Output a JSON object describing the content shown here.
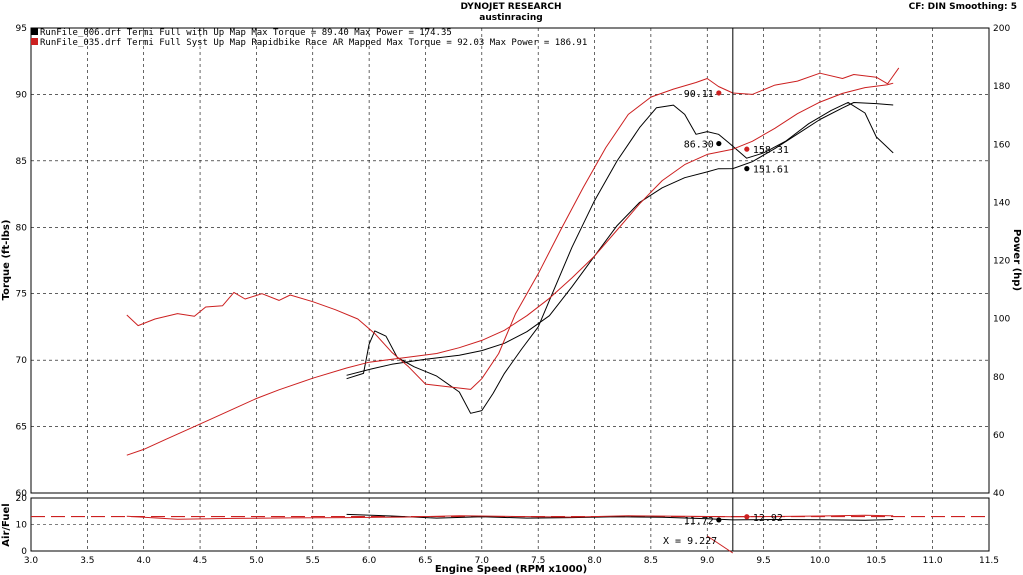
{
  "header": {
    "title": "DYNOJET RESEARCH",
    "subtitle": "austinracing",
    "settings": "CF: DIN  Smoothing: 5"
  },
  "legend": [
    {
      "color": "#000000",
      "label": "RunFile_006.drf Termi Full with Up Map Max Torque = 89.40       Max Power = 174.35"
    },
    {
      "color": "#cc2020",
      "label": "RunFile_035.drf Termi Full Syst Up Map Rapidbike Race AR Mapped Max Torque = 92.03     Max Power = 186.91"
    }
  ],
  "cursor": {
    "x_label": "X = 9.227"
  },
  "chart_data": {
    "type": "line",
    "xlabel": "Engine Speed (RPM x1000)",
    "xlim": [
      3.0,
      11.5
    ],
    "xticks": [
      "3.0",
      "3.5",
      "4.0",
      "4.5",
      "5.0",
      "5.5",
      "6.0",
      "6.5",
      "7.0",
      "7.5",
      "8.0",
      "8.5",
      "9.0",
      "9.5",
      "10.0",
      "10.5",
      "11.0",
      "11.5"
    ],
    "cursor_x": 9.227,
    "main": {
      "ylabel_left": "Torque (ft-lbs)",
      "ylabel_right": "Power (hp)",
      "ylim_left": [
        60,
        95
      ],
      "ylim_right": [
        40,
        200
      ],
      "yticks_left": [
        "60",
        "65",
        "70",
        "75",
        "80",
        "85",
        "90",
        "95"
      ],
      "yticks_right": [
        "40",
        "60",
        "80",
        "100",
        "120",
        "140",
        "160",
        "180",
        "200"
      ],
      "grid": true,
      "series": [
        {
          "color": "#000000",
          "axis": "left",
          "points": [
            [
              5.8,
              68.6
            ],
            [
              5.95,
              69.0
            ],
            [
              6.0,
              71.2
            ],
            [
              6.05,
              72.2
            ],
            [
              6.15,
              71.8
            ],
            [
              6.25,
              70.2
            ],
            [
              6.4,
              69.5
            ],
            [
              6.6,
              68.8
            ],
            [
              6.8,
              67.6
            ],
            [
              6.9,
              66.0
            ],
            [
              7.0,
              66.2
            ],
            [
              7.1,
              67.5
            ],
            [
              7.2,
              69.0
            ],
            [
              7.35,
              70.8
            ],
            [
              7.5,
              72.5
            ],
            [
              7.6,
              74.5
            ],
            [
              7.8,
              78.5
            ],
            [
              8.0,
              82.0
            ],
            [
              8.2,
              85.0
            ],
            [
              8.4,
              87.5
            ],
            [
              8.55,
              89.0
            ],
            [
              8.7,
              89.2
            ],
            [
              8.8,
              88.5
            ],
            [
              8.9,
              87.0
            ],
            [
              9.0,
              87.2
            ],
            [
              9.1,
              87.0
            ],
            [
              9.2,
              86.3
            ],
            [
              9.35,
              85.2
            ],
            [
              9.5,
              85.6
            ],
            [
              9.7,
              86.5
            ],
            [
              9.9,
              87.8
            ],
            [
              10.1,
              88.8
            ],
            [
              10.25,
              89.4
            ],
            [
              10.4,
              88.6
            ],
            [
              10.5,
              86.8
            ],
            [
              10.65,
              85.6
            ]
          ]
        },
        {
          "color": "#000000",
          "axis": "right",
          "points": [
            [
              5.8,
              80.5
            ],
            [
              6.0,
              82.5
            ],
            [
              6.2,
              84.3
            ],
            [
              6.5,
              86.0
            ],
            [
              6.8,
              87.4
            ],
            [
              7.0,
              89.0
            ],
            [
              7.2,
              91.5
            ],
            [
              7.4,
              95.5
            ],
            [
              7.6,
              101.0
            ],
            [
              7.8,
              111.0
            ],
            [
              8.0,
              121.5
            ],
            [
              8.2,
              132.0
            ],
            [
              8.4,
              140.0
            ],
            [
              8.6,
              145.0
            ],
            [
              8.8,
              148.5
            ],
            [
              9.0,
              150.5
            ],
            [
              9.1,
              151.6
            ],
            [
              9.227,
              151.61
            ],
            [
              9.4,
              154.0
            ],
            [
              9.6,
              158.5
            ],
            [
              9.8,
              163.5
            ],
            [
              10.0,
              168.5
            ],
            [
              10.2,
              172.5
            ],
            [
              10.3,
              174.35
            ],
            [
              10.5,
              174.0
            ],
            [
              10.65,
              173.5
            ]
          ]
        },
        {
          "color": "#cc2020",
          "axis": "left",
          "points": [
            [
              3.85,
              73.4
            ],
            [
              3.95,
              72.6
            ],
            [
              4.1,
              73.1
            ],
            [
              4.3,
              73.5
            ],
            [
              4.45,
              73.3
            ],
            [
              4.55,
              74.0
            ],
            [
              4.7,
              74.1
            ],
            [
              4.8,
              75.1
            ],
            [
              4.9,
              74.6
            ],
            [
              5.05,
              75.0
            ],
            [
              5.2,
              74.5
            ],
            [
              5.3,
              74.9
            ],
            [
              5.5,
              74.4
            ],
            [
              5.7,
              73.8
            ],
            [
              5.9,
              73.1
            ],
            [
              6.05,
              72.0
            ],
            [
              6.2,
              70.6
            ],
            [
              6.35,
              69.5
            ],
            [
              6.5,
              68.2
            ],
            [
              6.7,
              68.0
            ],
            [
              6.9,
              67.8
            ],
            [
              7.0,
              68.6
            ],
            [
              7.15,
              70.5
            ],
            [
              7.3,
              73.5
            ],
            [
              7.5,
              76.5
            ],
            [
              7.7,
              79.8
            ],
            [
              7.9,
              83.0
            ],
            [
              8.1,
              86.0
            ],
            [
              8.3,
              88.5
            ],
            [
              8.5,
              89.8
            ],
            [
              8.7,
              90.4
            ],
            [
              8.9,
              90.9
            ],
            [
              9.0,
              91.2
            ],
            [
              9.1,
              90.6
            ],
            [
              9.227,
              90.11
            ],
            [
              9.4,
              90.0
            ],
            [
              9.6,
              90.7
            ],
            [
              9.8,
              91.0
            ],
            [
              10.0,
              91.6
            ],
            [
              10.2,
              91.2
            ],
            [
              10.3,
              91.5
            ],
            [
              10.5,
              91.3
            ],
            [
              10.6,
              90.8
            ],
            [
              10.7,
              92.0
            ]
          ]
        },
        {
          "color": "#cc2020",
          "axis": "right",
          "points": [
            [
              3.85,
              53.0
            ],
            [
              4.0,
              55.0
            ],
            [
              4.2,
              58.5
            ],
            [
              4.4,
              62.0
            ],
            [
              4.6,
              65.5
            ],
            [
              4.8,
              69.0
            ],
            [
              5.0,
              72.5
            ],
            [
              5.2,
              75.5
            ],
            [
              5.5,
              79.5
            ],
            [
              5.8,
              83.0
            ],
            [
              6.0,
              85.0
            ],
            [
              6.3,
              86.5
            ],
            [
              6.6,
              88.0
            ],
            [
              6.8,
              90.0
            ],
            [
              7.0,
              92.5
            ],
            [
              7.2,
              96.0
            ],
            [
              7.4,
              101.0
            ],
            [
              7.6,
              107.0
            ],
            [
              7.8,
              114.0
            ],
            [
              8.0,
              121.5
            ],
            [
              8.2,
              130.5
            ],
            [
              8.4,
              139.5
            ],
            [
              8.6,
              147.5
            ],
            [
              8.8,
              153.0
            ],
            [
              9.0,
              156.5
            ],
            [
              9.227,
              158.31
            ],
            [
              9.4,
              161.0
            ],
            [
              9.6,
              165.5
            ],
            [
              9.8,
              170.5
            ],
            [
              10.0,
              174.5
            ],
            [
              10.2,
              177.5
            ],
            [
              10.4,
              179.5
            ],
            [
              10.6,
              180.5
            ],
            [
              10.65,
              181.0
            ]
          ]
        }
      ],
      "markers": [
        {
          "label": "90.11",
          "color": "#cc2020",
          "x": 9.227,
          "y": 90.11,
          "axis": "left",
          "side": "left"
        },
        {
          "label": "86.30",
          "color": "#000000",
          "x": 9.227,
          "y": 86.3,
          "axis": "left",
          "side": "left"
        },
        {
          "label": "158.31",
          "color": "#cc2020",
          "x": 9.227,
          "y": 158.31,
          "axis": "right",
          "side": "right"
        },
        {
          "label": "151.61",
          "color": "#000000",
          "x": 9.227,
          "y": 151.61,
          "axis": "right",
          "side": "right"
        }
      ]
    },
    "af": {
      "ylabel": "Air/Fuel",
      "ylim": [
        0,
        20
      ],
      "yticks": [
        "0",
        "10",
        "20"
      ],
      "target": 13.0,
      "series": [
        {
          "color": "#000000",
          "points": [
            [
              5.8,
              13.8
            ],
            [
              6.2,
              13.2
            ],
            [
              6.6,
              12.4
            ],
            [
              7.0,
              12.9
            ],
            [
              7.4,
              12.4
            ],
            [
              7.8,
              12.6
            ],
            [
              8.2,
              12.9
            ],
            [
              8.6,
              12.7
            ],
            [
              9.0,
              12.2
            ],
            [
              9.227,
              11.72
            ],
            [
              9.6,
              11.9
            ],
            [
              10.0,
              11.8
            ],
            [
              10.4,
              11.6
            ],
            [
              10.65,
              11.9
            ]
          ]
        },
        {
          "color": "#cc2020",
          "points": [
            [
              3.85,
              13.1
            ],
            [
              4.3,
              12.0
            ],
            [
              4.8,
              12.3
            ],
            [
              5.3,
              12.5
            ],
            [
              5.8,
              12.6
            ],
            [
              6.3,
              12.8
            ],
            [
              6.8,
              13.3
            ],
            [
              7.3,
              13.0
            ],
            [
              7.8,
              12.8
            ],
            [
              8.3,
              13.3
            ],
            [
              8.8,
              13.1
            ],
            [
              9.227,
              12.92
            ],
            [
              9.6,
              13.0
            ],
            [
              10.0,
              13.2
            ],
            [
              10.4,
              13.5
            ],
            [
              10.65,
              13.3
            ]
          ]
        }
      ],
      "markers": [
        {
          "label": "11.72",
          "color": "#000000",
          "x": 9.227,
          "y": 11.72,
          "side": "left"
        },
        {
          "label": "12.92",
          "color": "#cc2020",
          "x": 9.227,
          "y": 12.92,
          "side": "right"
        }
      ]
    }
  }
}
